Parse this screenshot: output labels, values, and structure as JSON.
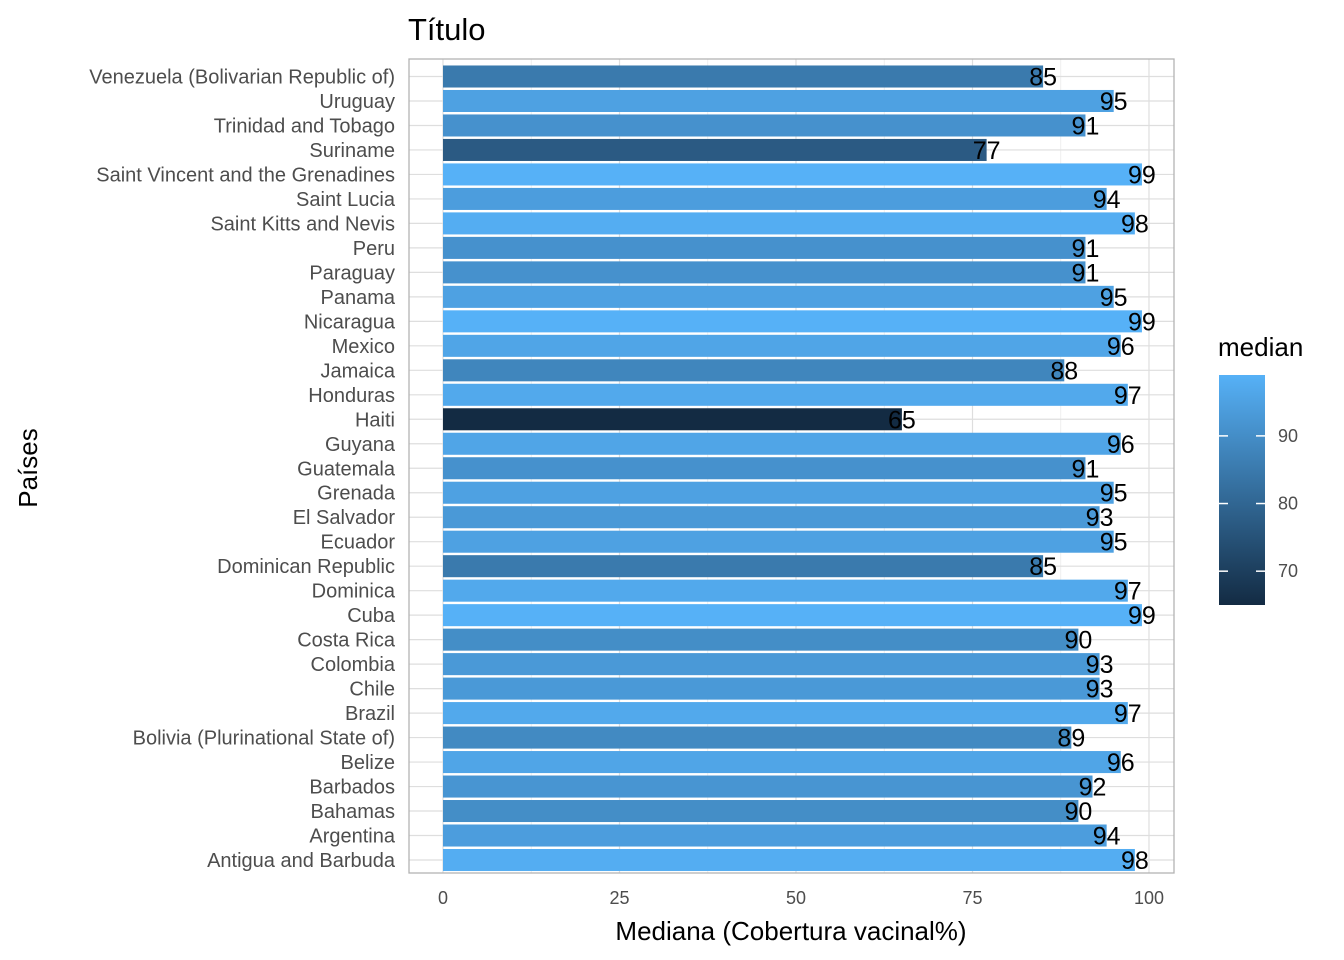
{
  "chart_data": {
    "type": "bar",
    "orientation": "horizontal",
    "title": "Título",
    "xlabel": "Mediana (Cobertura vacinal%)",
    "ylabel": "Países",
    "xlim": [
      0,
      100
    ],
    "x_ticks": [
      "0",
      "25",
      "50",
      "75",
      "100"
    ],
    "grid": true,
    "legend": {
      "title": "median",
      "position": "right",
      "type": "colorbar",
      "ticks": [
        "70",
        "80",
        "90"
      ],
      "range": [
        65,
        99
      ],
      "low_color": "#132B43",
      "high_color": "#56B1F7"
    },
    "categories": [
      "Venezuela (Bolivarian Republic of)",
      "Uruguay",
      "Trinidad and Tobago",
      "Suriname",
      "Saint Vincent and the Grenadines",
      "Saint Lucia",
      "Saint Kitts and Nevis",
      "Peru",
      "Paraguay",
      "Panama",
      "Nicaragua",
      "Mexico",
      "Jamaica",
      "Honduras",
      "Haiti",
      "Guyana",
      "Guatemala",
      "Grenada",
      "El Salvador",
      "Ecuador",
      "Dominican Republic",
      "Dominica",
      "Cuba",
      "Costa Rica",
      "Colombia",
      "Chile",
      "Brazil",
      "Bolivia (Plurinational State of)",
      "Belize",
      "Barbados",
      "Bahamas",
      "Argentina",
      "Antigua and Barbuda"
    ],
    "values": [
      85,
      95,
      91,
      77,
      99,
      94,
      98,
      91,
      91,
      95,
      99,
      96,
      88,
      97,
      65,
      96,
      91,
      95,
      93,
      95,
      85,
      97,
      99,
      90,
      93,
      93,
      97,
      89,
      96,
      92,
      90,
      94,
      98
    ]
  }
}
